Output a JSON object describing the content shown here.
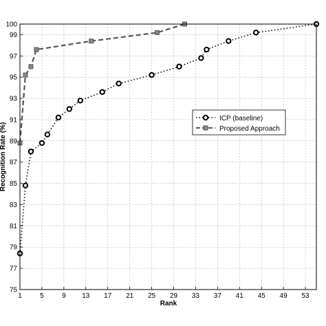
{
  "chart_data": {
    "type": "line",
    "xlabel": "Rank",
    "ylabel": "Recognition Rate (%)",
    "xlim": [
      1,
      55
    ],
    "ylim": [
      75,
      100
    ],
    "xticks": [
      1,
      5,
      9,
      13,
      17,
      21,
      25,
      29,
      33,
      37,
      41,
      45,
      49,
      53
    ],
    "yticks": [
      75,
      77,
      79,
      81,
      83,
      85,
      87,
      89,
      91,
      93,
      95,
      97,
      99,
      100
    ],
    "grid": true,
    "legend_position": "right-middle",
    "series": [
      {
        "name": "ICP (baseline)",
        "line_style": "dotted",
        "marker": "circle",
        "color": "#000000",
        "x": [
          1,
          2,
          3,
          5,
          6,
          8,
          10,
          12,
          16,
          19,
          25,
          30,
          34,
          35,
          39,
          44,
          55
        ],
        "y": [
          78.4,
          84.8,
          88.0,
          88.8,
          89.6,
          91.2,
          92.0,
          92.8,
          93.6,
          94.4,
          95.2,
          96.0,
          96.8,
          97.6,
          98.4,
          99.2,
          100.0
        ]
      },
      {
        "name": "Proposed Approach",
        "line_style": "dashed",
        "marker": "square",
        "color": "#555555",
        "x": [
          1,
          2,
          3,
          4,
          14,
          26,
          31
        ],
        "y": [
          88.8,
          95.2,
          96.0,
          97.6,
          98.4,
          99.2,
          100.0
        ]
      }
    ]
  }
}
